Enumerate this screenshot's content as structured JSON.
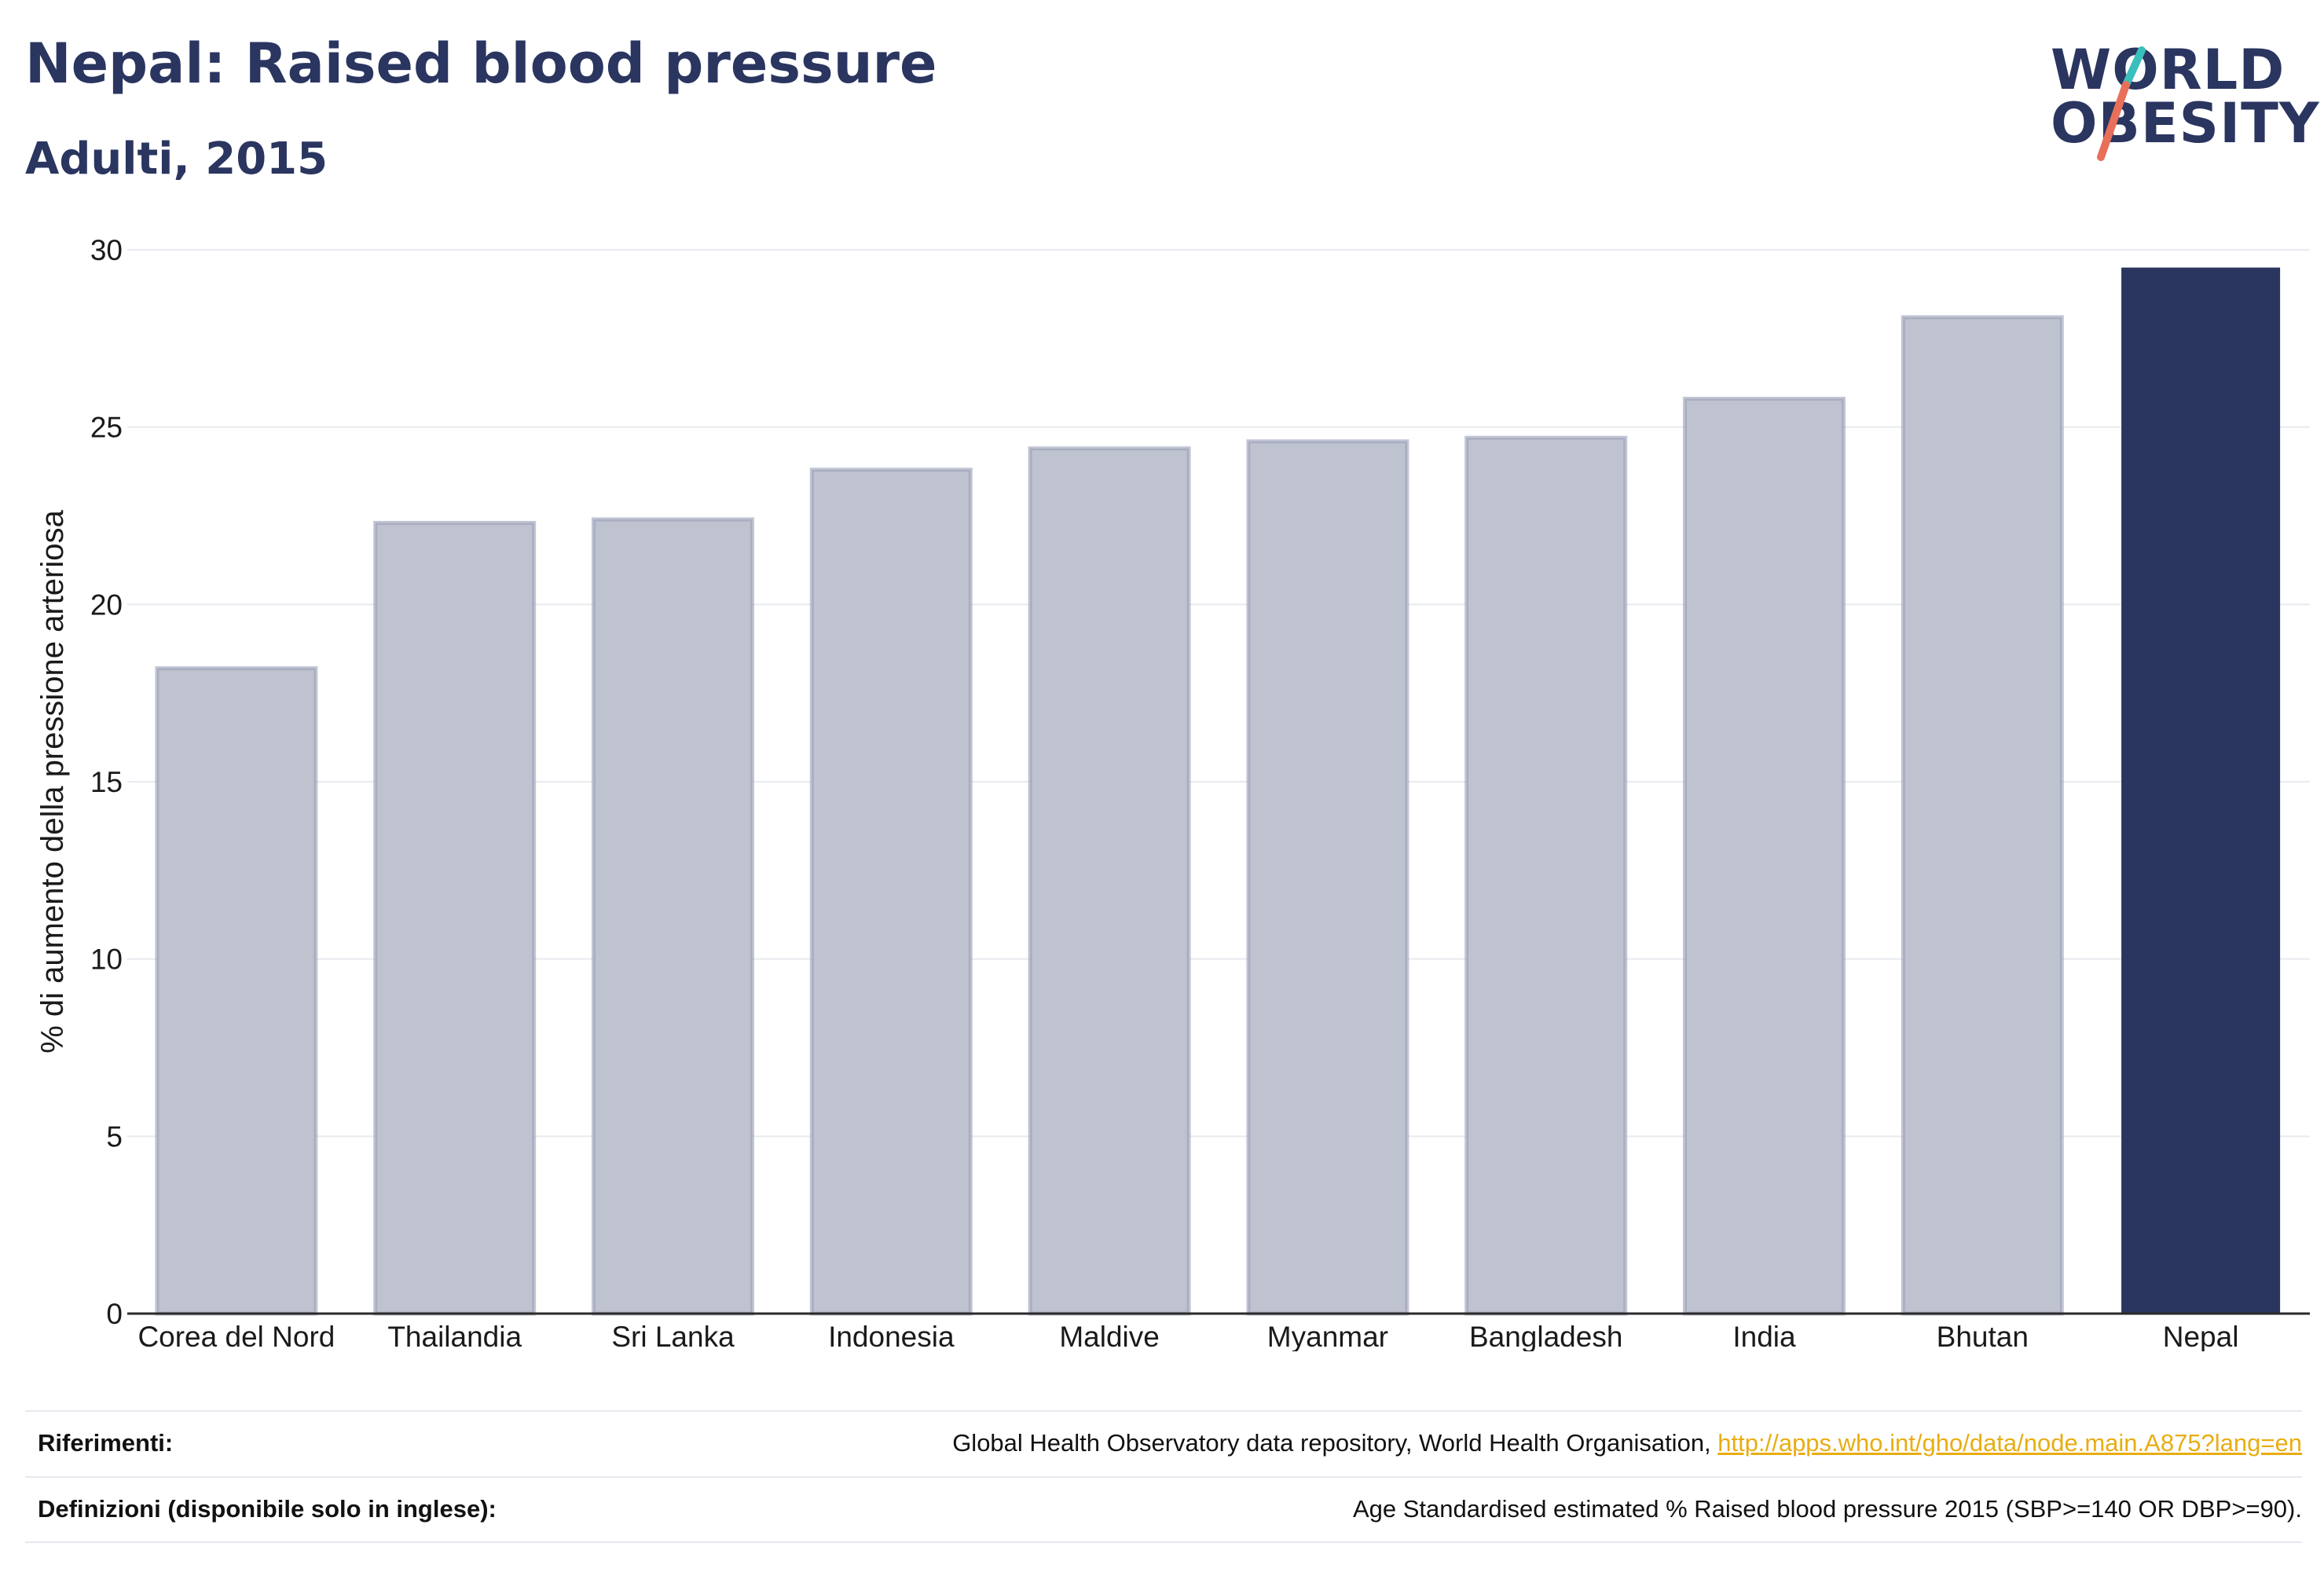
{
  "header": {
    "title": "Nepal: Raised blood pressure",
    "subtitle": "Adulti, 2015"
  },
  "logo": {
    "line1": "WORLD",
    "line2": "OBESITY",
    "accent_colors": [
      "#3bbfbd",
      "#e8705a"
    ]
  },
  "chart_data": {
    "type": "bar",
    "categories": [
      "Corea del Nord",
      "Thailandia",
      "Sri Lanka",
      "Indonesia",
      "Maldive",
      "Myanmar",
      "Bangladesh",
      "India",
      "Bhutan",
      "Nepal"
    ],
    "values": [
      18.2,
      22.3,
      22.4,
      23.8,
      24.4,
      24.6,
      24.7,
      25.8,
      28.1,
      29.5
    ],
    "highlight": "Nepal",
    "ylabel": "% di aumento della pressione arteriosa",
    "xlabel": "",
    "ylim": [
      0,
      30
    ],
    "yticks": [
      0,
      5,
      10,
      15,
      20,
      25,
      30
    ],
    "grid": true,
    "colors": {
      "bar": "#bfc2cf",
      "bar_border": "#9a9fb7",
      "highlight": "#2a3560",
      "grid": "#e8eaef",
      "axis": "#2a2a2a"
    }
  },
  "footer": {
    "references_label": "Riferimenti:",
    "references_text": "Global Health Observatory data repository, World Health Organisation, ",
    "references_link": "http://apps.who.int/gho/data/node.main.A875?lang=en",
    "definitions_label": "Definizioni (disponibile solo in inglese):",
    "definitions_text": "Age Standardised estimated % Raised blood pressure 2015 (SBP>=140 OR DBP>=90)."
  }
}
